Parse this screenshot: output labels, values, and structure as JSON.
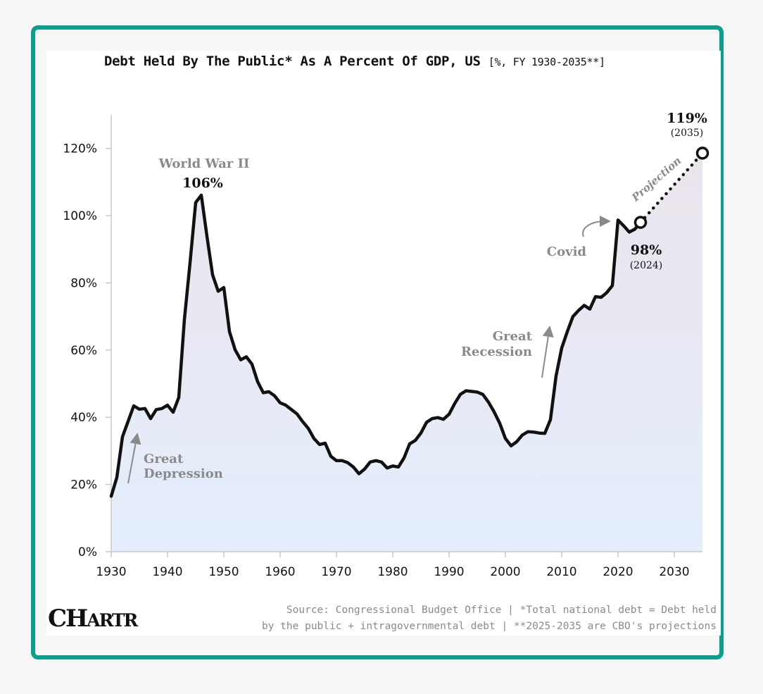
{
  "chart": {
    "title": "Debt Held By The Public* As A Percent Of GDP, US",
    "subtitle": "[%, FY 1930-2035**]",
    "source_line1": "Source: Congressional Budget Office | *Total national debt = Debt held",
    "source_line2": "by the public + intragovernmental debt | **2025-2035 are CBO's projections",
    "logo": {
      "big": "CH",
      "small": "ARTR"
    }
  },
  "colors": {
    "border": "#0b9e8e",
    "line": "#111111",
    "annotation": "#8a8a8a",
    "fill_top": "#ebe4ec",
    "fill_bottom": "#e4eefc"
  },
  "chart_data": {
    "type": "line",
    "xlim": [
      1930,
      2035
    ],
    "ylim": [
      0,
      130
    ],
    "x_ticks": [
      {
        "value": 1930,
        "label": "1930"
      },
      {
        "value": 1940,
        "label": "1940"
      },
      {
        "value": 1950,
        "label": "1950"
      },
      {
        "value": 1960,
        "label": "1960"
      },
      {
        "value": 1970,
        "label": "1970"
      },
      {
        "value": 1980,
        "label": "1980"
      },
      {
        "value": 1990,
        "label": "1990"
      },
      {
        "value": 2000,
        "label": "2000"
      },
      {
        "value": 2010,
        "label": "2010"
      },
      {
        "value": 2020,
        "label": "2020"
      },
      {
        "value": 2030,
        "label": "2030"
      }
    ],
    "y_ticks": [
      {
        "value": 0,
        "label": "0%"
      },
      {
        "value": 20,
        "label": "20%"
      },
      {
        "value": 40,
        "label": "40%"
      },
      {
        "value": 60,
        "label": "60%"
      },
      {
        "value": 80,
        "label": "80%"
      },
      {
        "value": 100,
        "label": "100%"
      },
      {
        "value": 120,
        "label": "120%"
      }
    ],
    "grid": false,
    "historical": {
      "x": [
        1930,
        1931,
        1932,
        1933,
        1934,
        1935,
        1936,
        1937,
        1938,
        1939,
        1940,
        1941,
        1942,
        1943,
        1944,
        1945,
        1946,
        1947,
        1948,
        1949,
        1950,
        1951,
        1952,
        1953,
        1954,
        1955,
        1956,
        1957,
        1958,
        1959,
        1960,
        1961,
        1962,
        1963,
        1964,
        1965,
        1966,
        1967,
        1968,
        1969,
        1970,
        1971,
        1972,
        1973,
        1974,
        1975,
        1976,
        1977,
        1978,
        1979,
        1980,
        1981,
        1982,
        1983,
        1984,
        1985,
        1986,
        1987,
        1988,
        1989,
        1990,
        1991,
        1992,
        1993,
        1994,
        1995,
        1996,
        1997,
        1998,
        1999,
        2000,
        2001,
        2002,
        2003,
        2004,
        2005,
        2006,
        2007,
        2008,
        2009,
        2010,
        2011,
        2012,
        2013,
        2014,
        2015,
        2016,
        2017,
        2018,
        2019,
        2020,
        2021,
        2022,
        2023,
        2024
      ],
      "y": [
        16.5,
        22.1,
        34.2,
        38.8,
        43.4,
        42.4,
        42.6,
        39.6,
        42.3,
        42.6,
        43.6,
        41.5,
        45.9,
        69.2,
        86.0,
        103.9,
        106.1,
        93.9,
        82.4,
        77.5,
        78.6,
        65.5,
        60.1,
        57.1,
        58.0,
        55.8,
        50.6,
        47.3,
        47.6,
        46.4,
        44.3,
        43.6,
        42.3,
        41.0,
        38.7,
        36.7,
        33.7,
        31.9,
        32.3,
        28.4,
        27.1,
        27.1,
        26.5,
        25.2,
        23.2,
        24.6,
        26.7,
        27.1,
        26.7,
        24.9,
        25.5,
        25.2,
        27.9,
        32.1,
        33.1,
        35.3,
        38.5,
        39.6,
        39.9,
        39.4,
        40.9,
        44.1,
        46.8,
        47.9,
        47.7,
        47.5,
        46.8,
        44.5,
        41.6,
        38.2,
        33.7,
        31.5,
        32.7,
        34.7,
        35.7,
        35.6,
        35.3,
        35.2,
        39.3,
        52.3,
        60.6,
        65.5,
        70.0,
        71.8,
        73.3,
        72.2,
        75.9,
        75.7,
        77.1,
        79.2,
        98.7,
        97.0,
        95.1,
        96.0,
        98.0
      ]
    },
    "projection": {
      "x": [
        2024,
        2035
      ],
      "y": [
        98.0,
        118.6
      ]
    },
    "annotations": [
      {
        "text": "World War II",
        "year": 1946,
        "value": 106.1
      },
      {
        "text": "106%",
        "year": 1946,
        "value": 106.1
      },
      {
        "text": "Great",
        "note": "Great Depression"
      },
      {
        "text": "Depression",
        "note": "Great Depression"
      },
      {
        "text": "Great",
        "note": "Great Recession"
      },
      {
        "text": "Recession",
        "note": "Great Recession"
      },
      {
        "text": "Covid",
        "year": 2020
      },
      {
        "text": "98%",
        "year": 2024,
        "value": 98.0
      },
      {
        "text": "(2024)",
        "year": 2024
      },
      {
        "text": "119%",
        "year": 2035,
        "value": 118.6
      },
      {
        "text": "(2035)",
        "year": 2035
      },
      {
        "text": "Projection"
      }
    ]
  }
}
